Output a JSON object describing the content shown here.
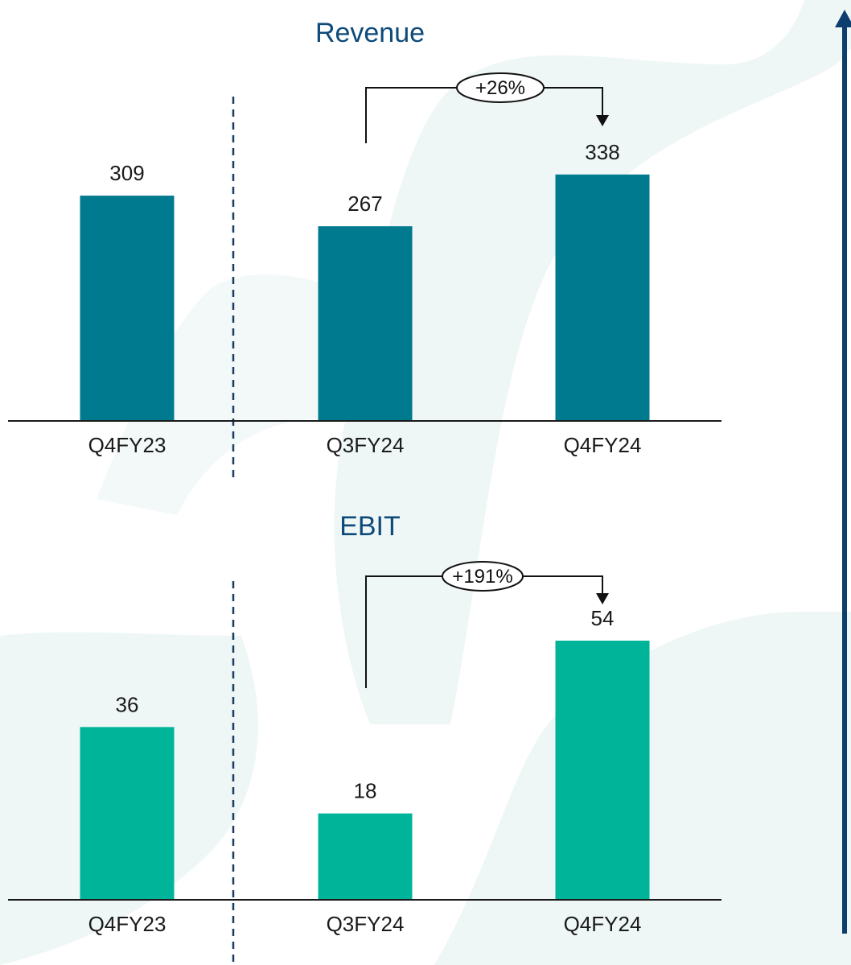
{
  "colors": {
    "background_shape": "#eef7f6",
    "revenue_bar": "#007a8f",
    "ebit_bar": "#00b49a",
    "title": "#0d4a7a",
    "axis": "#1a1a1a",
    "divider": "#1c3d63",
    "side_arrow": "#0d3f6e"
  },
  "chart_data": [
    {
      "type": "bar",
      "title": "Revenue",
      "categories": [
        "Q4FY23",
        "Q3FY24",
        "Q4FY24"
      ],
      "values": [
        309,
        267,
        338
      ],
      "value_labels": [
        "309",
        "267",
        "338"
      ],
      "ylim": [
        0,
        340
      ],
      "annotation": {
        "from": "Q3FY24",
        "to": "Q4FY24",
        "label": "+26%"
      },
      "xlabel": "",
      "ylabel": "",
      "grid": false
    },
    {
      "type": "bar",
      "title": "EBIT",
      "categories": [
        "Q4FY23",
        "Q3FY24",
        "Q4FY24"
      ],
      "values": [
        36,
        18,
        54
      ],
      "value_labels": [
        "36",
        "18",
        "54"
      ],
      "ylim": [
        0,
        54
      ],
      "annotation": {
        "from": "Q3FY24",
        "to": "Q4FY24",
        "label": "+191%"
      },
      "xlabel": "",
      "ylabel": "",
      "grid": false
    }
  ]
}
